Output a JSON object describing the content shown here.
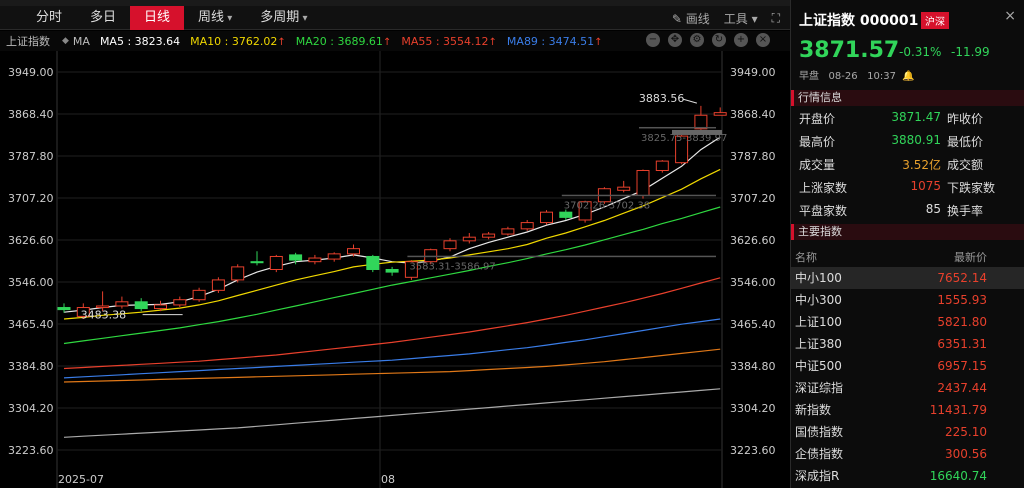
{
  "tabs": [
    {
      "label": "分时",
      "active": false,
      "dropdown": false
    },
    {
      "label": "多日",
      "active": false,
      "dropdown": false
    },
    {
      "label": "日线",
      "active": true,
      "dropdown": false
    },
    {
      "label": "周线",
      "active": false,
      "dropdown": true
    },
    {
      "label": "多周期",
      "active": false,
      "dropdown": true
    }
  ],
  "toolbar": {
    "draw_label": "画线",
    "tools_label": "工具"
  },
  "indicator_bar": {
    "name": "上证指数",
    "ma_label": "MA",
    "items": [
      {
        "text": "MA5 : 3823.64",
        "color": "#ffffff",
        "up": false
      },
      {
        "text": "MA10 : 3762.02",
        "color": "#f0d800",
        "up": true
      },
      {
        "text": "MA20 : 3689.61",
        "color": "#2fd840",
        "up": true
      },
      {
        "text": "MA55 : 3554.12",
        "color": "#e8402c",
        "up": true
      },
      {
        "text": "MA89 : 3474.51",
        "color": "#3a7de8",
        "up": true
      }
    ]
  },
  "chart_data": {
    "type": "candlestick",
    "y_ticks": [
      "3949.00",
      "3868.40",
      "3787.80",
      "3707.20",
      "3626.60",
      "3546.00",
      "3465.40",
      "3384.80",
      "3304.20",
      "3223.60"
    ],
    "ylim": [
      3183.3,
      3989.3
    ],
    "x_labels": [
      {
        "index": 0,
        "text": "2025-07"
      },
      {
        "index": 17,
        "text": "08"
      }
    ],
    "annotations": [
      {
        "text": "3883.56",
        "index": 33,
        "value": 3883.56
      },
      {
        "text": "3483.38",
        "index": 2,
        "value": 3483.38
      },
      {
        "text": "3825.75-3839.97",
        "index": 30,
        "value": 3832
      },
      {
        "text": "3702.26-3702.38",
        "index": 26,
        "value": 3702
      },
      {
        "text": "3583.31-3586.97",
        "index": 18,
        "value": 3585
      }
    ],
    "candles": [
      {
        "o": 3497,
        "c": 3493,
        "h": 3505,
        "l": 3487
      },
      {
        "o": 3480,
        "c": 3497,
        "h": 3505,
        "l": 3475
      },
      {
        "o": 3497,
        "c": 3500,
        "h": 3528,
        "l": 3490
      },
      {
        "o": 3500,
        "c": 3508,
        "h": 3518,
        "l": 3495
      },
      {
        "o": 3508,
        "c": 3495,
        "h": 3515,
        "l": 3490
      },
      {
        "o": 3495,
        "c": 3502,
        "h": 3510,
        "l": 3490
      },
      {
        "o": 3502,
        "c": 3512,
        "h": 3518,
        "l": 3498
      },
      {
        "o": 3512,
        "c": 3530,
        "h": 3535,
        "l": 3508
      },
      {
        "o": 3530,
        "c": 3550,
        "h": 3555,
        "l": 3525
      },
      {
        "o": 3550,
        "c": 3575,
        "h": 3580,
        "l": 3545
      },
      {
        "o": 3585,
        "c": 3583,
        "h": 3605,
        "l": 3578
      },
      {
        "o": 3570,
        "c": 3595,
        "h": 3598,
        "l": 3565
      },
      {
        "o": 3598,
        "c": 3588,
        "h": 3602,
        "l": 3580
      },
      {
        "o": 3585,
        "c": 3592,
        "h": 3598,
        "l": 3580
      },
      {
        "o": 3590,
        "c": 3600,
        "h": 3603,
        "l": 3585
      },
      {
        "o": 3600,
        "c": 3610,
        "h": 3618,
        "l": 3595
      },
      {
        "o": 3595,
        "c": 3570,
        "h": 3598,
        "l": 3565
      },
      {
        "o": 3570,
        "c": 3565,
        "h": 3575,
        "l": 3558
      },
      {
        "o": 3555,
        "c": 3585,
        "h": 3588,
        "l": 3550
      },
      {
        "o": 3585,
        "c": 3608,
        "h": 3610,
        "l": 3580
      },
      {
        "o": 3610,
        "c": 3625,
        "h": 3630,
        "l": 3605
      },
      {
        "o": 3625,
        "c": 3632,
        "h": 3640,
        "l": 3620
      },
      {
        "o": 3632,
        "c": 3638,
        "h": 3642,
        "l": 3628
      },
      {
        "o": 3638,
        "c": 3648,
        "h": 3652,
        "l": 3635
      },
      {
        "o": 3648,
        "c": 3660,
        "h": 3665,
        "l": 3644
      },
      {
        "o": 3660,
        "c": 3680,
        "h": 3684,
        "l": 3656
      },
      {
        "o": 3680,
        "c": 3670,
        "h": 3685,
        "l": 3665
      },
      {
        "o": 3665,
        "c": 3700,
        "h": 3702,
        "l": 3660
      },
      {
        "o": 3700,
        "c": 3725,
        "h": 3728,
        "l": 3696
      },
      {
        "o": 3722,
        "c": 3728,
        "h": 3740,
        "l": 3718
      },
      {
        "o": 3712,
        "c": 3760,
        "h": 3762,
        "l": 3706
      },
      {
        "o": 3760,
        "c": 3778,
        "h": 3780,
        "l": 3756
      },
      {
        "o": 3775,
        "c": 3826,
        "h": 3828,
        "l": 3772
      },
      {
        "o": 3840,
        "c": 3866,
        "h": 3884,
        "l": 3838
      },
      {
        "o": 3866,
        "c": 3871,
        "h": 3881,
        "l": 3866
      }
    ],
    "series": [
      {
        "name": "MA5",
        "color": "#e8e8e8",
        "values": [
          3488,
          3492,
          3497,
          3501,
          3502,
          3503,
          3508,
          3518,
          3532,
          3550,
          3565,
          3576,
          3585,
          3588,
          3592,
          3598,
          3592,
          3585,
          3582,
          3586,
          3594,
          3610,
          3622,
          3632,
          3642,
          3655,
          3664,
          3676,
          3690,
          3706,
          3722,
          3745,
          3768,
          3800,
          3824
        ]
      },
      {
        "name": "MA10",
        "color": "#f0d800",
        "values": [
          3475,
          3478,
          3482,
          3485,
          3488,
          3492,
          3496,
          3502,
          3510,
          3520,
          3530,
          3540,
          3550,
          3558,
          3566,
          3575,
          3580,
          3584,
          3586,
          3588,
          3592,
          3598,
          3604,
          3610,
          3618,
          3630,
          3640,
          3652,
          3664,
          3678,
          3692,
          3708,
          3724,
          3744,
          3762
        ]
      },
      {
        "name": "MA20",
        "color": "#2fd840",
        "values": [
          3428,
          3433,
          3438,
          3443,
          3448,
          3453,
          3458,
          3464,
          3470,
          3477,
          3484,
          3492,
          3500,
          3508,
          3516,
          3524,
          3532,
          3540,
          3547,
          3554,
          3561,
          3568,
          3576,
          3583,
          3591,
          3600,
          3608,
          3617,
          3627,
          3637,
          3647,
          3658,
          3668,
          3679,
          3690
        ]
      },
      {
        "name": "MA55",
        "color": "#e8402c",
        "values": [
          3380,
          3382,
          3384,
          3386,
          3388,
          3390,
          3392,
          3394,
          3397,
          3400,
          3403,
          3406,
          3410,
          3414,
          3418,
          3422,
          3426,
          3430,
          3435,
          3440,
          3445,
          3450,
          3456,
          3462,
          3468,
          3475,
          3482,
          3490,
          3498,
          3506,
          3515,
          3524,
          3534,
          3544,
          3554
        ]
      },
      {
        "name": "MA89",
        "color": "#3a7de8",
        "values": [
          3362,
          3364,
          3366,
          3368,
          3370,
          3372,
          3374,
          3376,
          3378,
          3380,
          3382,
          3384,
          3386,
          3388,
          3390,
          3392,
          3394,
          3396,
          3399,
          3402,
          3405,
          3408,
          3412,
          3416,
          3420,
          3425,
          3430,
          3435,
          3441,
          3447,
          3453,
          3459,
          3465,
          3470,
          3475
        ]
      },
      {
        "name": "MA120",
        "color": "#e07818",
        "values": [
          3354,
          3355,
          3356,
          3357,
          3358,
          3359,
          3360,
          3361,
          3362,
          3363,
          3364,
          3365,
          3366,
          3367,
          3368,
          3369,
          3370,
          3371,
          3372,
          3373,
          3374,
          3376,
          3378,
          3380,
          3382,
          3384,
          3387,
          3390,
          3393,
          3397,
          3401,
          3405,
          3409,
          3413,
          3417
        ]
      },
      {
        "name": "MA250",
        "color": "#aaaaaa",
        "values": [
          3248,
          3250,
          3252,
          3254,
          3256,
          3258,
          3260,
          3262,
          3264,
          3266,
          3269,
          3272,
          3275,
          3278,
          3281,
          3284,
          3287,
          3290,
          3293,
          3296,
          3299,
          3302,
          3305,
          3308,
          3311,
          3314,
          3317,
          3320,
          3323,
          3326,
          3329,
          3332,
          3335,
          3338,
          3341
        ]
      }
    ]
  },
  "sidebar": {
    "title": "上证指数 000001",
    "badge": "沪深",
    "price": "3871.57",
    "change_pct": "-0.31%",
    "change": "-11.99",
    "session": "早盘",
    "date": "08-26",
    "time": "10:37",
    "quote_header": "行情信息",
    "quote": [
      {
        "label": "开盘价",
        "value": "3871.47",
        "color": "green",
        "label2": "昨收价"
      },
      {
        "label": "最高价",
        "value": "3880.91",
        "color": "green",
        "label2": "最低价"
      },
      {
        "label": "成交量",
        "value": "3.52亿",
        "color": "orange",
        "label2": "成交额"
      },
      {
        "label": "上涨家数",
        "value": "1075",
        "color": "red",
        "label2": "下跌家数"
      },
      {
        "label": "平盘家数",
        "value": "85",
        "color": "white",
        "label2": "换手率"
      }
    ],
    "indices_header": "主要指数",
    "col_name": "名称",
    "col_price": "最新价",
    "indices": [
      {
        "name": "中小100",
        "price": "7652.14",
        "color": "red"
      },
      {
        "name": "中小300",
        "price": "1555.93",
        "color": "red"
      },
      {
        "name": "上证100",
        "price": "5821.80",
        "color": "red"
      },
      {
        "name": "上证380",
        "price": "6351.31",
        "color": "red"
      },
      {
        "name": "中证500",
        "price": "6957.15",
        "color": "red"
      },
      {
        "name": "深证综指",
        "price": "2437.44",
        "color": "red"
      },
      {
        "name": "新指数",
        "price": "11431.79",
        "color": "red"
      },
      {
        "name": "国债指数",
        "price": "225.10",
        "color": "red"
      },
      {
        "name": "企债指数",
        "price": "300.56",
        "color": "red"
      },
      {
        "name": "深成指R",
        "price": "16640.74",
        "color": "green"
      }
    ]
  }
}
